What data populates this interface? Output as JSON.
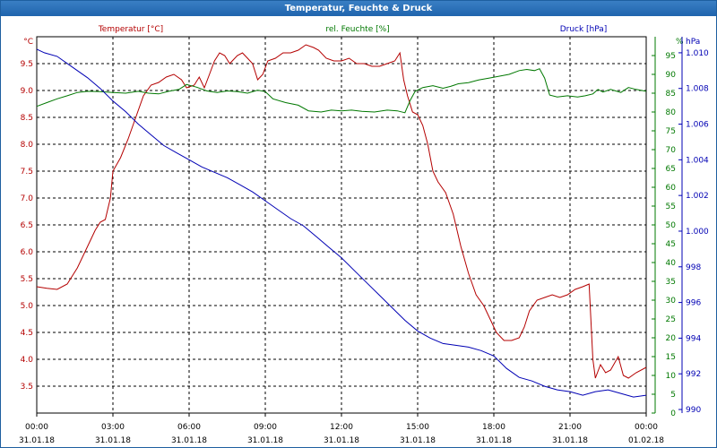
{
  "window": {
    "title": "Temperatur, Feuchte & Druck"
  },
  "chart_data": {
    "type": "line",
    "title": "Temperatur, Feuchte & Druck",
    "colors": {
      "temperature": "#b40000",
      "humidity": "#007800",
      "pressure": "#0000b4",
      "grid": "#000000"
    },
    "x_ticks": [
      {
        "time": "00:00",
        "date": "31.01.18",
        "hour": 0
      },
      {
        "time": "03:00",
        "date": "31.01.18",
        "hour": 3
      },
      {
        "time": "06:00",
        "date": "31.01.18",
        "hour": 6
      },
      {
        "time": "09:00",
        "date": "31.01.18",
        "hour": 9
      },
      {
        "time": "12:00",
        "date": "31.01.18",
        "hour": 12
      },
      {
        "time": "15:00",
        "date": "31.01.18",
        "hour": 15
      },
      {
        "time": "18:00",
        "date": "31.01.18",
        "hour": 18
      },
      {
        "time": "21:00",
        "date": "31.01.18",
        "hour": 21
      },
      {
        "time": "00:00",
        "date": "01.02.18",
        "hour": 24
      }
    ],
    "x_range": [
      0,
      24
    ],
    "axes": {
      "temperature": {
        "label": "Temperatur [°C]",
        "unit": "°C",
        "range": [
          3.0,
          10.0
        ],
        "ticks": [
          "3.5",
          "4.0",
          "4.5",
          "5.0",
          "5.5",
          "6.0",
          "6.5",
          "7.0",
          "7.5",
          "8.0",
          "8.5",
          "9.0",
          "9.5"
        ]
      },
      "humidity": {
        "label": "rel. Feuchte [%]",
        "unit": "%",
        "range": [
          0,
          100
        ],
        "ticks": [
          "0",
          "5",
          "10",
          "15",
          "20",
          "25",
          "30",
          "35",
          "40",
          "45",
          "50",
          "55",
          "60",
          "65",
          "70",
          "75",
          "80",
          "85",
          "90",
          "95"
        ]
      },
      "pressure": {
        "label": "Druck [hPa]",
        "unit": "hPa",
        "range": [
          989.8,
          1010.9
        ],
        "ticks": [
          "990",
          "992",
          "994",
          "996",
          "998",
          "1.000",
          "1.002",
          "1.004",
          "1.006",
          "1.008",
          "1.010"
        ]
      }
    },
    "series": [
      {
        "name": "Temperatur [°C]",
        "axis": "temperature",
        "points": [
          [
            0,
            5.35
          ],
          [
            0.4,
            5.32
          ],
          [
            0.8,
            5.3
          ],
          [
            1.2,
            5.4
          ],
          [
            1.6,
            5.7
          ],
          [
            2.0,
            6.1
          ],
          [
            2.3,
            6.4
          ],
          [
            2.5,
            6.55
          ],
          [
            2.7,
            6.6
          ],
          [
            2.9,
            7.0
          ],
          [
            3.0,
            7.5
          ],
          [
            3.3,
            7.75
          ],
          [
            3.6,
            8.1
          ],
          [
            3.9,
            8.5
          ],
          [
            4.2,
            8.9
          ],
          [
            4.5,
            9.1
          ],
          [
            4.8,
            9.15
          ],
          [
            5.1,
            9.25
          ],
          [
            5.4,
            9.3
          ],
          [
            5.7,
            9.2
          ],
          [
            5.9,
            9.05
          ],
          [
            6.2,
            9.1
          ],
          [
            6.4,
            9.25
          ],
          [
            6.6,
            9.05
          ],
          [
            6.8,
            9.3
          ],
          [
            7.0,
            9.55
          ],
          [
            7.2,
            9.7
          ],
          [
            7.4,
            9.65
          ],
          [
            7.6,
            9.5
          ],
          [
            7.9,
            9.65
          ],
          [
            8.1,
            9.7
          ],
          [
            8.3,
            9.6
          ],
          [
            8.5,
            9.5
          ],
          [
            8.7,
            9.2
          ],
          [
            8.9,
            9.3
          ],
          [
            9.1,
            9.55
          ],
          [
            9.4,
            9.6
          ],
          [
            9.7,
            9.7
          ],
          [
            10.0,
            9.7
          ],
          [
            10.3,
            9.75
          ],
          [
            10.6,
            9.85
          ],
          [
            10.9,
            9.8
          ],
          [
            11.1,
            9.75
          ],
          [
            11.4,
            9.6
          ],
          [
            11.7,
            9.55
          ],
          [
            12.0,
            9.55
          ],
          [
            12.3,
            9.6
          ],
          [
            12.6,
            9.5
          ],
          [
            12.9,
            9.5
          ],
          [
            13.2,
            9.45
          ],
          [
            13.5,
            9.45
          ],
          [
            13.8,
            9.5
          ],
          [
            14.1,
            9.55
          ],
          [
            14.3,
            9.7
          ],
          [
            14.45,
            9.2
          ],
          [
            14.6,
            8.9
          ],
          [
            14.8,
            8.6
          ],
          [
            15.0,
            8.55
          ],
          [
            15.2,
            8.35
          ],
          [
            15.4,
            8.0
          ],
          [
            15.6,
            7.5
          ],
          [
            15.8,
            7.3
          ],
          [
            16.1,
            7.1
          ],
          [
            16.4,
            6.7
          ],
          [
            16.7,
            6.1
          ],
          [
            17.0,
            5.6
          ],
          [
            17.3,
            5.2
          ],
          [
            17.6,
            5.0
          ],
          [
            17.9,
            4.7
          ],
          [
            18.1,
            4.5
          ],
          [
            18.4,
            4.35
          ],
          [
            18.7,
            4.35
          ],
          [
            19.0,
            4.4
          ],
          [
            19.2,
            4.6
          ],
          [
            19.4,
            4.9
          ],
          [
            19.7,
            5.1
          ],
          [
            20.0,
            5.15
          ],
          [
            20.3,
            5.2
          ],
          [
            20.6,
            5.15
          ],
          [
            20.9,
            5.2
          ],
          [
            21.2,
            5.3
          ],
          [
            21.5,
            5.35
          ],
          [
            21.75,
            5.4
          ],
          [
            21.9,
            4.0
          ],
          [
            22.0,
            3.65
          ],
          [
            22.2,
            3.9
          ],
          [
            22.4,
            3.75
          ],
          [
            22.6,
            3.8
          ],
          [
            22.9,
            4.05
          ],
          [
            23.1,
            3.7
          ],
          [
            23.3,
            3.65
          ],
          [
            23.6,
            3.75
          ],
          [
            24.0,
            3.85
          ]
        ]
      },
      {
        "name": "rel. Feuchte [%]",
        "axis": "humidity",
        "points": [
          [
            0,
            81.5
          ],
          [
            0.4,
            82.5
          ],
          [
            0.8,
            83.5
          ],
          [
            1.2,
            84.3
          ],
          [
            1.6,
            85.2
          ],
          [
            2.0,
            85.5
          ],
          [
            2.5,
            85.4
          ],
          [
            3.0,
            85.2
          ],
          [
            3.5,
            85.0
          ],
          [
            4.0,
            85.5
          ],
          [
            4.4,
            85.0
          ],
          [
            4.8,
            84.8
          ],
          [
            5.2,
            85.5
          ],
          [
            5.6,
            86.0
          ],
          [
            5.9,
            87.3
          ],
          [
            6.3,
            86.6
          ],
          [
            6.7,
            85.6
          ],
          [
            7.1,
            85.2
          ],
          [
            7.5,
            85.6
          ],
          [
            7.9,
            85.4
          ],
          [
            8.3,
            85.0
          ],
          [
            8.7,
            85.8
          ],
          [
            9.0,
            85.4
          ],
          [
            9.3,
            83.5
          ],
          [
            9.8,
            82.5
          ],
          [
            10.3,
            81.8
          ],
          [
            10.7,
            80.3
          ],
          [
            11.2,
            80.0
          ],
          [
            11.6,
            80.5
          ],
          [
            12.0,
            80.3
          ],
          [
            12.4,
            80.5
          ],
          [
            12.8,
            80.2
          ],
          [
            13.3,
            80.0
          ],
          [
            13.8,
            80.5
          ],
          [
            14.2,
            80.3
          ],
          [
            14.5,
            79.8
          ],
          [
            14.7,
            83.0
          ],
          [
            14.9,
            85.5
          ],
          [
            15.2,
            86.5
          ],
          [
            15.6,
            87.0
          ],
          [
            16.0,
            86.3
          ],
          [
            16.3,
            86.8
          ],
          [
            16.6,
            87.5
          ],
          [
            17.0,
            87.8
          ],
          [
            17.4,
            88.5
          ],
          [
            17.8,
            89.0
          ],
          [
            18.2,
            89.5
          ],
          [
            18.6,
            90.0
          ],
          [
            19.0,
            91.0
          ],
          [
            19.3,
            91.3
          ],
          [
            19.6,
            91.0
          ],
          [
            19.8,
            91.5
          ],
          [
            20.0,
            89.0
          ],
          [
            20.2,
            84.5
          ],
          [
            20.5,
            84.0
          ],
          [
            20.9,
            84.3
          ],
          [
            21.3,
            84.0
          ],
          [
            21.6,
            84.3
          ],
          [
            21.9,
            84.8
          ],
          [
            22.1,
            86.0
          ],
          [
            22.3,
            85.3
          ],
          [
            22.6,
            86.0
          ],
          [
            22.8,
            85.6
          ],
          [
            23.0,
            85.2
          ],
          [
            23.3,
            86.5
          ],
          [
            23.6,
            86.0
          ],
          [
            24.0,
            85.5
          ]
        ]
      },
      {
        "name": "Druck [hPa]",
        "axis": "pressure",
        "points": [
          [
            0,
            1010.2
          ],
          [
            0.3,
            1010.0
          ],
          [
            0.8,
            1009.8
          ],
          [
            1.3,
            1009.3
          ],
          [
            2.0,
            1008.6
          ],
          [
            2.5,
            1008.0
          ],
          [
            3.0,
            1007.3
          ],
          [
            3.5,
            1006.7
          ],
          [
            4.0,
            1006.0
          ],
          [
            4.5,
            1005.4
          ],
          [
            5.0,
            1004.8
          ],
          [
            5.5,
            1004.4
          ],
          [
            6.0,
            1004.0
          ],
          [
            6.5,
            1003.6
          ],
          [
            7.0,
            1003.3
          ],
          [
            7.5,
            1003.0
          ],
          [
            8.0,
            1002.6
          ],
          [
            8.5,
            1002.2
          ],
          [
            9.0,
            1001.7
          ],
          [
            9.5,
            1001.2
          ],
          [
            10.0,
            1000.7
          ],
          [
            10.5,
            1000.3
          ],
          [
            11.0,
            999.7
          ],
          [
            11.5,
            999.1
          ],
          [
            12.0,
            998.5
          ],
          [
            12.5,
            997.8
          ],
          [
            13.0,
            997.1
          ],
          [
            13.5,
            996.4
          ],
          [
            14.0,
            995.7
          ],
          [
            14.5,
            995.0
          ],
          [
            15.0,
            994.4
          ],
          [
            15.5,
            994.0
          ],
          [
            16.0,
            993.7
          ],
          [
            16.5,
            993.6
          ],
          [
            17.0,
            993.5
          ],
          [
            17.5,
            993.3
          ],
          [
            18.0,
            993.0
          ],
          [
            18.5,
            992.3
          ],
          [
            19.0,
            991.8
          ],
          [
            19.5,
            991.6
          ],
          [
            20.0,
            991.3
          ],
          [
            20.5,
            991.1
          ],
          [
            21.0,
            991.0
          ],
          [
            21.5,
            990.8
          ],
          [
            22.0,
            991.0
          ],
          [
            22.5,
            991.1
          ],
          [
            23.0,
            990.9
          ],
          [
            23.5,
            990.7
          ],
          [
            24.0,
            990.8
          ]
        ]
      }
    ]
  }
}
